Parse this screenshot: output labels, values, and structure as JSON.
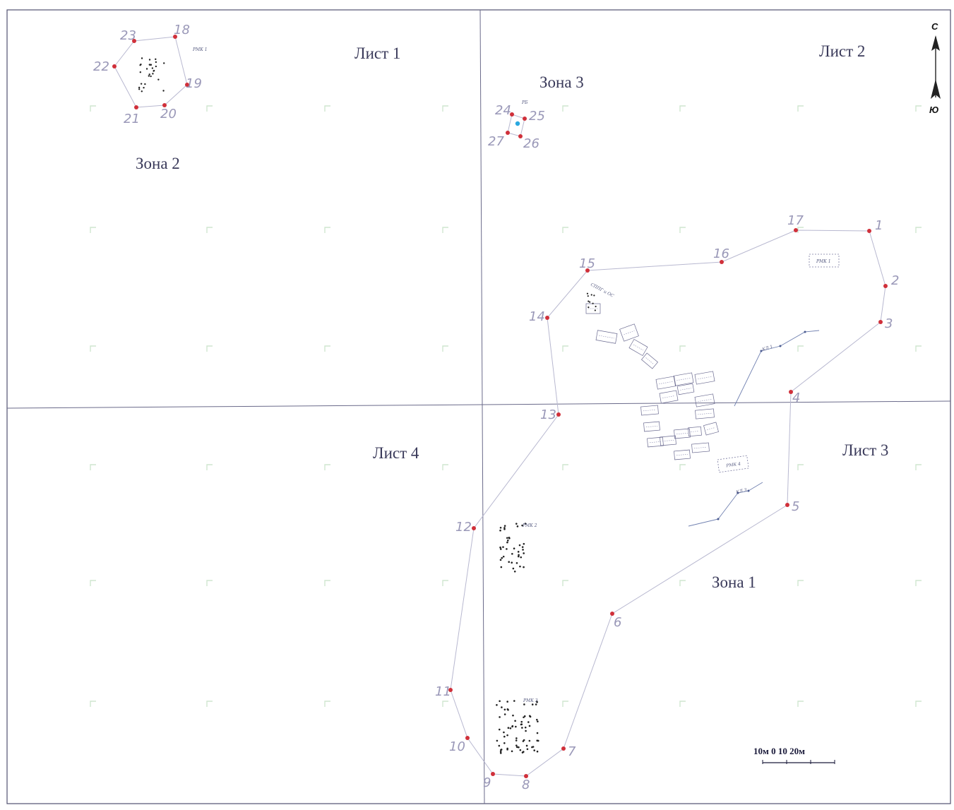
{
  "sheets": [
    "Лист 1",
    "Лист 2",
    "Лист 3",
    "Лист 4"
  ],
  "zones": [
    "Зона 1",
    "Зона 2",
    "Зона 3"
  ],
  "compass": {
    "north": "С",
    "south": "Ю"
  },
  "scale_bar": {
    "label": "10м  0  10  20м"
  },
  "colors": {
    "point": "#d0303a",
    "line": "#b8b8d0",
    "label": "#9a98b8",
    "grid": "#8a8aa8",
    "benchmark": "#2aa8e0"
  },
  "points": [
    {
      "id": "1",
      "label": "1"
    },
    {
      "id": "2",
      "label": "2"
    },
    {
      "id": "3",
      "label": "3"
    },
    {
      "id": "4",
      "label": "4"
    },
    {
      "id": "5",
      "label": "5"
    },
    {
      "id": "6",
      "label": "6"
    },
    {
      "id": "7",
      "label": "7"
    },
    {
      "id": "8",
      "label": "8"
    },
    {
      "id": "9",
      "label": "9"
    },
    {
      "id": "10",
      "label": "10"
    },
    {
      "id": "11",
      "label": "11"
    },
    {
      "id": "12",
      "label": "12"
    },
    {
      "id": "13",
      "label": "13"
    },
    {
      "id": "14",
      "label": "14"
    },
    {
      "id": "15",
      "label": "15"
    },
    {
      "id": "16",
      "label": "16"
    },
    {
      "id": "17",
      "label": "17"
    },
    {
      "id": "18",
      "label": "18"
    },
    {
      "id": "19",
      "label": "19"
    },
    {
      "id": "20",
      "label": "20"
    },
    {
      "id": "21",
      "label": "21"
    },
    {
      "id": "22",
      "label": "22"
    },
    {
      "id": "23",
      "label": "23"
    },
    {
      "id": "24",
      "label": "24"
    },
    {
      "id": "25",
      "label": "25"
    },
    {
      "id": "26",
      "label": "26"
    },
    {
      "id": "27",
      "label": "27"
    }
  ],
  "small_labels": {
    "rmk1_zone2": "РМК 1",
    "rmk1_zone1": "РМК 1",
    "rmk2": "РМК 2",
    "rmk3": "РМК 3",
    "rmk4": "РМК 4",
    "rb": "РБ",
    "kl1": "КЛ 1",
    "kl3": "КЛ 3",
    "ugp": "СППГ и ОС"
  }
}
